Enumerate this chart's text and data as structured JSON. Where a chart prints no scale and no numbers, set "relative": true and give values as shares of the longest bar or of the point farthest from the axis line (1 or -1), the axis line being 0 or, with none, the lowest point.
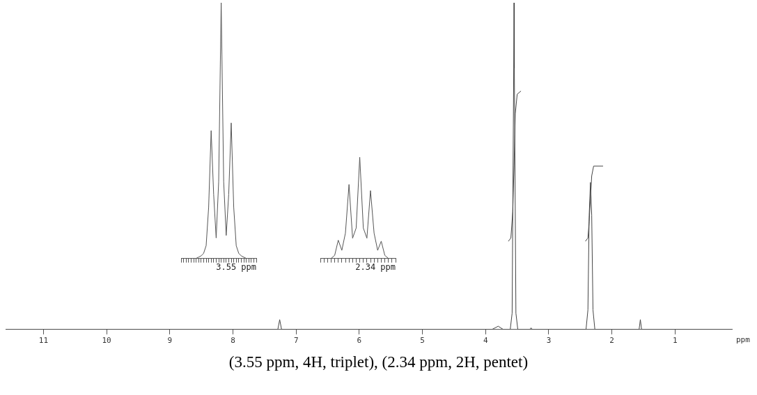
{
  "chart_data": [
    {
      "type": "line",
      "relative": true,
      "xlabel": "ppm",
      "xlim": [
        11.6,
        0.1
      ],
      "xticks": [
        11,
        10,
        9,
        8,
        7,
        6,
        5,
        4,
        3,
        2,
        1
      ],
      "tick_labels": "x",
      "grid": false,
      "legend": false,
      "marker": "none",
      "line_style": "solid",
      "annotations": [
        "(3.55 ppm, 4H, triplet), (2.34 ppm, 2H, pentet)"
      ],
      "series": [
        {
          "color": "#444444",
          "x": [
            11.6,
            7.29,
            7.26,
            7.23,
            3.9,
            3.8,
            3.72,
            3.61,
            3.58,
            3.555,
            3.55,
            3.545,
            3.52,
            3.49,
            3.3,
            3.28,
            3.26,
            2.41,
            2.38,
            2.36,
            2.34,
            2.32,
            2.3,
            2.27,
            1.57,
            1.55,
            1.53,
            0.1
          ],
          "values": [
            0,
            0,
            0.03,
            0,
            0,
            0.01,
            0,
            0,
            0.05,
            0.8,
            1.0,
            0.8,
            0.05,
            0,
            0,
            0.005,
            0,
            0,
            0.06,
            0.35,
            0.45,
            0.35,
            0.06,
            0,
            0,
            0.03,
            0,
            0
          ]
        },
        {
          "color": "#444444",
          "x": [
            3.64,
            3.6,
            3.57,
            3.55,
            3.53,
            3.5,
            3.44
          ],
          "values": [
            0.27,
            0.28,
            0.36,
            0.5,
            0.66,
            0.72,
            0.73
          ]
        },
        {
          "color": "#444444",
          "x": [
            2.42,
            2.38,
            2.36,
            2.34,
            2.32,
            2.29,
            2.14
          ],
          "values": [
            0.27,
            0.28,
            0.33,
            0.4,
            0.47,
            0.5,
            0.5
          ]
        }
      ]
    },
    {
      "type": "line",
      "relative": true,
      "xlabel": "3.55 ppm",
      "tick_labels": false,
      "grid": false,
      "legend": false,
      "marker": "none",
      "categories": [
        null,
        null,
        null,
        null,
        null,
        null,
        null,
        null,
        null,
        null,
        null,
        null,
        null,
        null,
        null,
        null,
        null,
        null,
        null,
        null,
        null,
        null,
        null,
        null,
        null,
        null,
        null,
        null,
        null,
        null,
        null
      ],
      "series": [
        {
          "color": "#555555",
          "values": [
            0,
            0,
            0,
            0,
            0,
            0,
            0,
            0.005,
            0.01,
            0.02,
            0.05,
            0.2,
            0.5,
            0.25,
            0.08,
            0.3,
            1.0,
            0.3,
            0.09,
            0.25,
            0.53,
            0.2,
            0.05,
            0.02,
            0.01,
            0.005,
            0,
            0,
            0,
            0,
            0
          ]
        }
      ]
    },
    {
      "type": "line",
      "relative": true,
      "xlabel": "2.34 ppm",
      "tick_labels": false,
      "grid": false,
      "legend": false,
      "marker": "none",
      "categories": [
        null,
        null,
        null,
        null,
        null,
        null,
        null,
        null,
        null,
        null,
        null,
        null,
        null,
        null,
        null,
        null,
        null,
        null,
        null,
        null,
        null,
        null
      ],
      "series": [
        {
          "color": "#555555",
          "values": [
            0,
            0,
            0,
            0,
            0.03,
            0.18,
            0.08,
            0.25,
            0.73,
            0.2,
            0.3,
            1.0,
            0.3,
            0.2,
            0.67,
            0.25,
            0.08,
            0.17,
            0.03,
            0,
            0,
            0
          ]
        }
      ]
    }
  ]
}
